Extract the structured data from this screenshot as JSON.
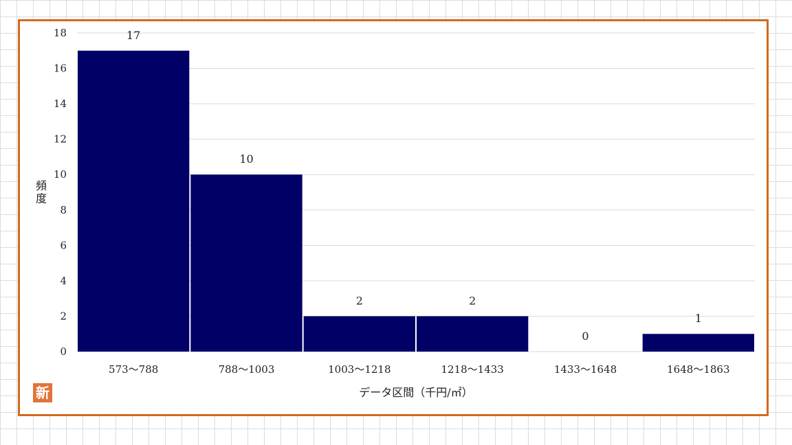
{
  "chart_data": {
    "type": "bar",
    "categories": [
      "573～788",
      "788～1003",
      "1003～1218",
      "1218～1433",
      "1433～1648",
      "1648～1863"
    ],
    "values": [
      17,
      10,
      2,
      2,
      0,
      1
    ],
    "xlabel": "データ区間（千円/㎡）",
    "ylabel": "頻度",
    "ylim": [
      0,
      18
    ],
    "yticks": [
      0,
      2,
      4,
      6,
      8,
      10,
      12,
      14,
      16,
      18
    ],
    "grid": true,
    "legend": "none",
    "colors": {
      "bar": "#000066",
      "grid": "#d9d9d9",
      "frame": "#d2691e",
      "page_grid": "#dcdcdc"
    }
  },
  "logo": {
    "text": "新",
    "color": "#e2733a"
  }
}
